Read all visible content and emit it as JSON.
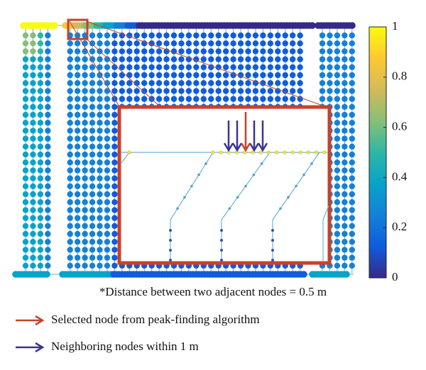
{
  "colorbar": {
    "lim": [
      0,
      1
    ],
    "ticks": [
      0,
      0.2,
      0.4,
      0.6,
      0.8,
      1
    ],
    "colors": [
      "#352a87",
      "#0f5cdd",
      "#1481d6",
      "#06a4ca",
      "#2eb7a4",
      "#87bf77",
      "#d1bb59",
      "#fec832",
      "#f9fb0e"
    ]
  },
  "note": "*Distance between two adjacent nodes = 0.5 m",
  "legend": [
    {
      "label": "Selected node from peak-finding algorithm",
      "color": "#c8412a"
    },
    {
      "label": "Neighboring nodes within 1 m",
      "color": "#3b3490"
    }
  ]
}
